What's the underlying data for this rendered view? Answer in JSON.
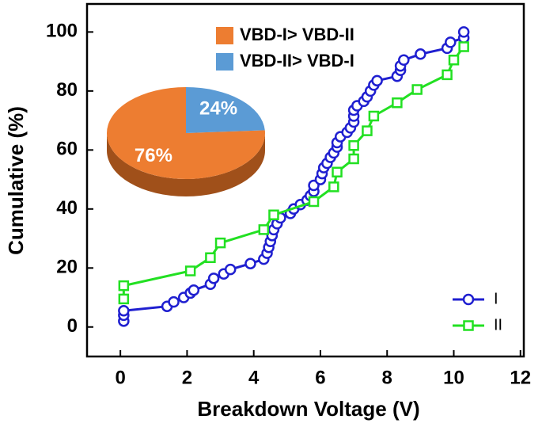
{
  "chart_data": [
    {
      "type": "line",
      "xlabel": "Breakdown Voltage (V)",
      "ylabel": "Cumulative (%)",
      "xlim": [
        -1,
        12.1
      ],
      "ylim": [
        -10,
        109.5
      ],
      "xticks": [
        0,
        2,
        4,
        6,
        8,
        10,
        12
      ],
      "yticks": [
        0,
        20,
        40,
        60,
        80,
        100
      ],
      "legend": "lower right",
      "series": [
        {
          "name": "I",
          "color": "#1f1fd0",
          "marker": "circle",
          "x": [
            0.1,
            0.1,
            0.1,
            1.4,
            1.6,
            1.9,
            2.1,
            2.2,
            2.7,
            2.8,
            3.1,
            3.3,
            3.9,
            4.3,
            4.4,
            4.45,
            4.5,
            4.55,
            4.6,
            4.7,
            4.8,
            5.1,
            5.2,
            5.4,
            5.6,
            5.7,
            5.8,
            5.8,
            6.0,
            6.05,
            6.1,
            6.2,
            6.3,
            6.4,
            6.5,
            6.5,
            6.6,
            6.8,
            6.9,
            7.0,
            7.0,
            7.0,
            7.1,
            7.3,
            7.4,
            7.5,
            7.6,
            7.7,
            8.3,
            8.4,
            8.4,
            8.5,
            9.0,
            9.8,
            9.9,
            10.3,
            10.3
          ],
          "values": [
            2,
            4,
            5.5,
            7,
            8.5,
            10,
            11.5,
            12.5,
            14.5,
            16.5,
            18,
            19.5,
            21.5,
            23,
            25,
            27,
            29,
            31,
            33,
            35,
            37,
            38.5,
            40,
            41.5,
            43,
            44.5,
            46,
            48,
            50,
            52,
            54,
            55.5,
            57.5,
            59,
            61,
            62.5,
            64.5,
            66,
            67.5,
            69.5,
            71.5,
            73.5,
            75,
            76.5,
            78,
            80,
            82,
            83.5,
            85,
            87,
            88.5,
            90.5,
            92.5,
            94.5,
            96.5,
            98,
            100
          ]
        },
        {
          "name": "II",
          "color": "#22e022",
          "marker": "square",
          "x": [
            0.1,
            0.1,
            2.1,
            2.7,
            3.0,
            4.3,
            4.6,
            5.8,
            6.4,
            6.5,
            7.0,
            7.0,
            7.4,
            7.6,
            8.3,
            8.9,
            9.8,
            10.0,
            10.3
          ],
          "values": [
            9.5,
            14,
            19,
            23.5,
            28.5,
            33,
            38,
            42.5,
            47.5,
            52.5,
            57,
            61.5,
            66.5,
            71.5,
            76,
            80.5,
            85.5,
            90.5,
            95
          ]
        }
      ]
    },
    {
      "type": "pie",
      "categories": [
        "VBD-I> VBD-II",
        "VBD-II> VBD-I"
      ],
      "values": [
        76,
        24
      ],
      "value_labels": [
        "76%",
        "24%"
      ],
      "colors": [
        "#ed7d31",
        "#5b9bd5"
      ]
    }
  ]
}
